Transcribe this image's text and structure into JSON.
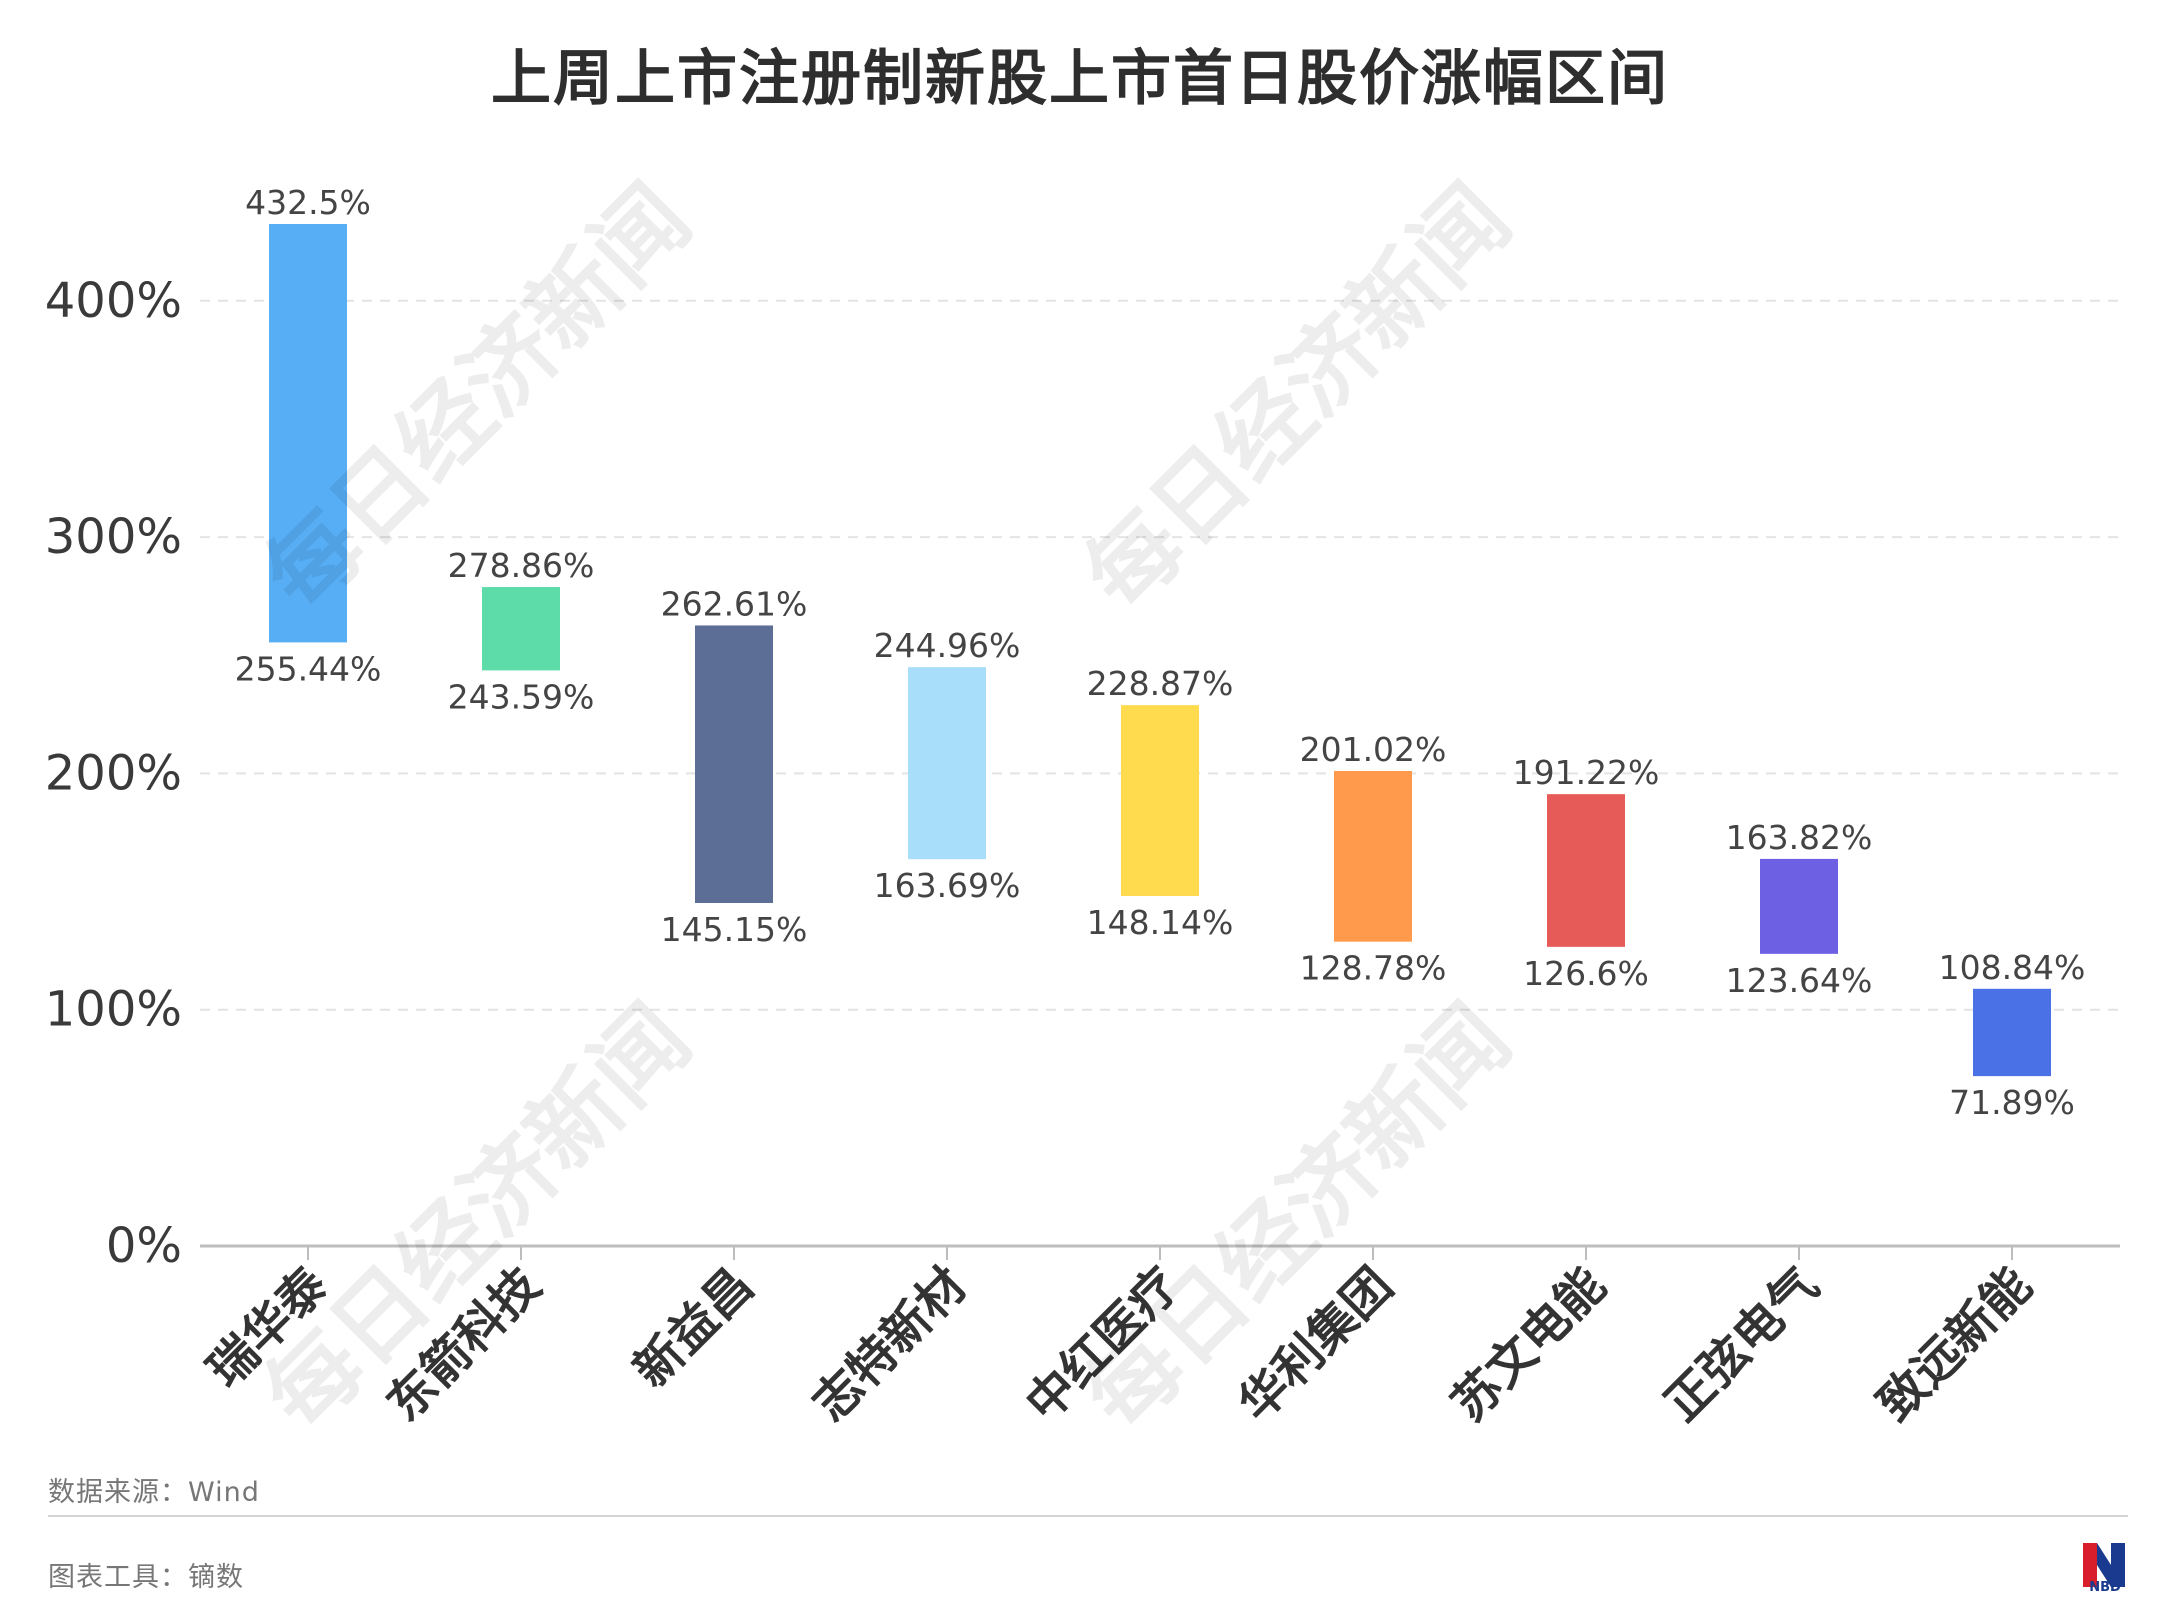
{
  "chart_data": {
    "type": "floating-bar",
    "title": "上周上市注册制新股上市首日股价涨幅区间",
    "categories": [
      "瑞华泰",
      "东箭科技",
      "新益昌",
      "志特新材",
      "中红医疗",
      "华利集团",
      "苏文电能",
      "正弦电气",
      "致远新能"
    ],
    "high": [
      432.5,
      278.86,
      262.61,
      244.96,
      228.87,
      201.02,
      191.22,
      163.82,
      108.84
    ],
    "low": [
      255.44,
      243.59,
      145.15,
      163.69,
      148.14,
      128.78,
      126.6,
      123.64,
      71.89
    ],
    "high_labels": [
      "432.5%",
      "278.86%",
      "262.61%",
      "244.96%",
      "228.87%",
      "201.02%",
      "191.22%",
      "163.82%",
      "108.84%"
    ],
    "low_labels": [
      "255.44%",
      "243.59%",
      "145.15%",
      "163.69%",
      "148.14%",
      "128.78%",
      "126.6%",
      "123.64%",
      "71.89%"
    ],
    "colors": [
      "#57aef5",
      "#5ddba8",
      "#5c6e96",
      "#a8defa",
      "#ffdb4d",
      "#ff9a4d",
      "#e65a57",
      "#6e60e3",
      "#4a72e6"
    ],
    "yticks": [
      0,
      100,
      200,
      300,
      400
    ],
    "ytick_labels": [
      "0%",
      "100%",
      "200%",
      "300%",
      "400%"
    ],
    "ylim": [
      0,
      432.5
    ],
    "grid": true
  },
  "footer": {
    "source": "数据来源：Wind",
    "tool": "图表工具：镝数",
    "logo_text": "NBD"
  },
  "watermark": "每日经济新闻"
}
